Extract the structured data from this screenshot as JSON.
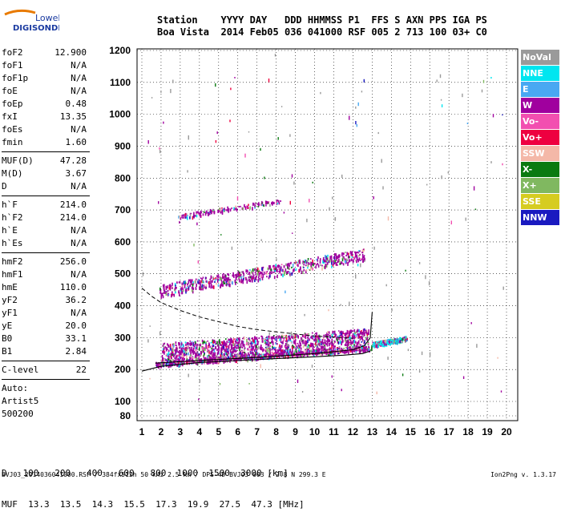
{
  "logo": {
    "line1": "Lowell",
    "line2": "DIGISONDE"
  },
  "header": {
    "labels": [
      "Station",
      "YYYY",
      "DAY",
      "DDD",
      "HHMMSS",
      "P1",
      "FFS",
      "S",
      "AXN",
      "PPS",
      "IGA",
      "PS"
    ],
    "values": [
      "Boa Vista",
      "2014",
      "Feb05",
      "036",
      "041000",
      "RSF",
      "005",
      "2",
      "713",
      "100",
      "03+",
      "C0"
    ]
  },
  "params": [
    {
      "group": [
        {
          "label": "foF2",
          "value": "12.900"
        },
        {
          "label": "foF1",
          "value": "N/A"
        },
        {
          "label": "foF1p",
          "value": "N/A"
        },
        {
          "label": "foE",
          "value": "N/A"
        },
        {
          "label": "foEp",
          "value": "0.48"
        },
        {
          "label": "fxI",
          "value": "13.35"
        },
        {
          "label": "foEs",
          "value": "N/A"
        },
        {
          "label": "fmin",
          "value": "1.60"
        }
      ]
    },
    {
      "group": [
        {
          "label": "MUF(D)",
          "value": "47.28"
        },
        {
          "label": "M(D)",
          "value": "3.67"
        },
        {
          "label": "D",
          "value": "N/A"
        }
      ]
    },
    {
      "group": [
        {
          "label": "h`F",
          "value": "214.0"
        },
        {
          "label": "h`F2",
          "value": "214.0"
        },
        {
          "label": "h`E",
          "value": "N/A"
        },
        {
          "label": "h`Es",
          "value": "N/A"
        }
      ]
    },
    {
      "group": [
        {
          "label": "hmF2",
          "value": "256.0"
        },
        {
          "label": "hmF1",
          "value": "N/A"
        },
        {
          "label": "hmE",
          "value": "110.0"
        },
        {
          "label": "yF2",
          "value": "36.2"
        },
        {
          "label": "yF1",
          "value": "N/A"
        },
        {
          "label": "yE",
          "value": "20.0"
        },
        {
          "label": "B0",
          "value": "33.1"
        },
        {
          "label": "B1",
          "value": "2.84"
        }
      ]
    },
    {
      "group": [
        {
          "label": "C-level",
          "value": "22"
        }
      ]
    }
  ],
  "autoscaling": [
    "Auto:",
    "Artist5",
    "500200"
  ],
  "legend": [
    {
      "label": "NoVal",
      "bg": "#9a9a9a",
      "fg": "#ffffff"
    },
    {
      "label": "NNE",
      "bg": "#00e6f0",
      "fg": "#ffffff"
    },
    {
      "label": "E",
      "bg": "#49a8f2",
      "fg": "#ffffff"
    },
    {
      "label": "W",
      "bg": "#a0009e",
      "fg": "#ffffff"
    },
    {
      "label": "Vo-",
      "bg": "#f24fb0",
      "fg": "#ffffff"
    },
    {
      "label": "Vo+",
      "bg": "#ee0040",
      "fg": "#ffffff"
    },
    {
      "label": "SSW",
      "bg": "#f4b8a8",
      "fg": "#ffffff"
    },
    {
      "label": "X-",
      "bg": "#0a7a10",
      "fg": "#ffffff"
    },
    {
      "label": "X+",
      "bg": "#80b860",
      "fg": "#ffffff"
    },
    {
      "label": "SSE",
      "bg": "#d6cc20",
      "fg": "#ffffff"
    },
    {
      "label": "NNW",
      "bg": "#1a1ac0",
      "fg": "#ffffff"
    }
  ],
  "mufTable": {
    "dLabel": "D",
    "dValues": [
      "100",
      "200",
      "400",
      "600",
      "800",
      "1000",
      "1500",
      "3000"
    ],
    "dUnit": "[km]",
    "mufLabel": "MUF",
    "mufValues": [
      "13.3",
      "13.5",
      "14.3",
      "15.5",
      "17.3",
      "19.9",
      "27.5",
      "47.3"
    ],
    "mufUnit": "[MHz]"
  },
  "footer": {
    "left": "BVJ03_2014036041000.RSF / 384fx512h 50 kHz 2.5 km / DPS-4D BVJ03 003 / 2.8 N 299.3 E",
    "right": "Ion2Png v. 1.3.17"
  },
  "chart_data": {
    "type": "scatter",
    "title": "",
    "xlabel": "",
    "ylabel": "",
    "xlim": [
      1,
      20
    ],
    "ylim": [
      80,
      1200
    ],
    "xticks": [
      1,
      2,
      3,
      4,
      5,
      6,
      7,
      8,
      9,
      10,
      11,
      12,
      13,
      14,
      15,
      16,
      17,
      18,
      19,
      20
    ],
    "yticks": [
      80,
      100,
      200,
      300,
      400,
      500,
      600,
      700,
      800,
      900,
      1000,
      1100,
      1200
    ],
    "grid": true,
    "legend_position": "right",
    "traces": [
      {
        "kind": "o-trace",
        "x_start": 1.7,
        "x_end": 13.0,
        "h_start": 218,
        "h_end": 270,
        "dominant": "W"
      },
      {
        "kind": "spread",
        "x_start": 2.0,
        "x_end": 12.8,
        "h_low_start": 220,
        "h_low_end": 265,
        "h_high_start": 285,
        "h_high_end": 330,
        "dominant": "W"
      },
      {
        "kind": "x-trace",
        "x_start": 13.0,
        "x_end": 14.8,
        "h_start": 280,
        "h_end": 300,
        "dominant": "NNE"
      },
      {
        "kind": "multi-hop",
        "x_start": 1.9,
        "x_end": 12.6,
        "h_start": 440,
        "h_end": 555,
        "dominant": "W"
      },
      {
        "kind": "echo",
        "x_start": 2.8,
        "x_end": 8.2,
        "h_start": 680,
        "h_end": 730,
        "dominant": "W"
      }
    ],
    "profile_lines": [
      {
        "name": "model-lower",
        "points": [
          [
            1.0,
            195
          ],
          [
            2.0,
            210
          ],
          [
            4.0,
            222
          ],
          [
            6.0,
            228
          ],
          [
            8.0,
            234
          ],
          [
            10.0,
            240
          ],
          [
            11.5,
            245
          ],
          [
            12.5,
            250
          ],
          [
            12.9,
            258
          ]
        ]
      },
      {
        "name": "model-upper",
        "points": [
          [
            1.0,
            455
          ],
          [
            1.5,
            430
          ],
          [
            2.0,
            410
          ],
          [
            3.0,
            385
          ],
          [
            4.0,
            365
          ],
          [
            5.0,
            350
          ],
          [
            6.0,
            335
          ],
          [
            7.0,
            325
          ],
          [
            8.0,
            318
          ],
          [
            10.0,
            305
          ],
          [
            12.0,
            298
          ]
        ]
      },
      {
        "name": "fitted-o",
        "points": [
          [
            1.7,
            220
          ],
          [
            4.0,
            228
          ],
          [
            7.0,
            238
          ],
          [
            10.0,
            250
          ],
          [
            12.0,
            262
          ],
          [
            12.6,
            275
          ],
          [
            12.9,
            300
          ],
          [
            13.0,
            380
          ]
        ]
      }
    ]
  }
}
